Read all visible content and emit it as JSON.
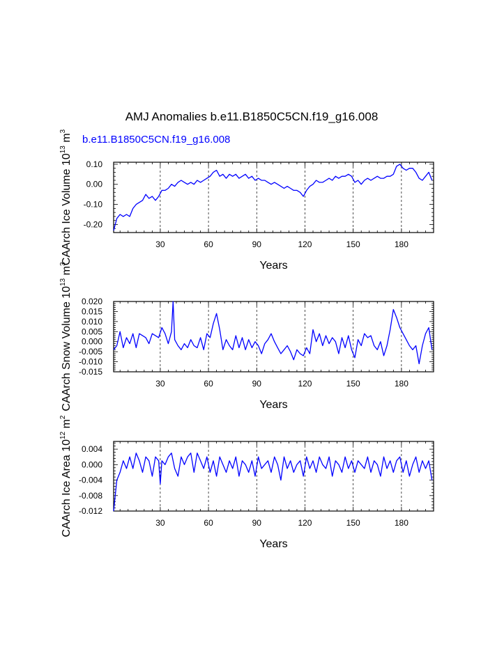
{
  "title": "AMJ Anomalies b.e11.B1850C5CN.f19_g16.008",
  "legend_label": "b.e11.B1850C5CN.f19_g16.008",
  "colors": {
    "series": "#0000ff",
    "axes": "#000000",
    "background": "#ffffff"
  },
  "chart_data": [
    {
      "type": "line",
      "title": "",
      "xlabel": "Years",
      "ylabel": "CAArch Ice Volume 10",
      "ylabel_sup": "13",
      "ylabel_unit": "m",
      "ylabel_unit_sup": "3",
      "xlim": [
        1,
        200
      ],
      "ylim": [
        -0.24,
        0.11
      ],
      "x_ticks": [
        30,
        60,
        90,
        120,
        150,
        180
      ],
      "y_ticks": [
        -0.2,
        -0.1,
        0.0,
        0.1
      ],
      "y_tick_labels": [
        "-0.20",
        "-0.10",
        "0.00",
        "0.10"
      ],
      "gridlines_x": [
        30,
        60,
        90,
        120,
        150,
        180
      ],
      "series": [
        {
          "name": "b.e11.B1850C5CN.f19_g16.008",
          "x": [
            1,
            3,
            5,
            7,
            9,
            11,
            13,
            15,
            17,
            19,
            21,
            23,
            25,
            27,
            29,
            31,
            33,
            35,
            37,
            39,
            41,
            43,
            45,
            47,
            49,
            51,
            53,
            55,
            57,
            59,
            61,
            63,
            65,
            67,
            69,
            71,
            73,
            75,
            77,
            79,
            81,
            83,
            85,
            87,
            89,
            91,
            93,
            95,
            97,
            99,
            101,
            103,
            105,
            107,
            109,
            111,
            113,
            115,
            117,
            119,
            121,
            123,
            125,
            127,
            129,
            131,
            133,
            135,
            137,
            139,
            141,
            143,
            145,
            147,
            149,
            151,
            153,
            155,
            157,
            159,
            161,
            163,
            165,
            167,
            169,
            171,
            173,
            175,
            177,
            179,
            181,
            183,
            185,
            187,
            189,
            191,
            193,
            195,
            197,
            199
          ],
          "values": [
            -0.23,
            -0.17,
            -0.15,
            -0.16,
            -0.15,
            -0.16,
            -0.12,
            -0.1,
            -0.09,
            -0.08,
            -0.05,
            -0.07,
            -0.06,
            -0.08,
            -0.06,
            -0.03,
            -0.03,
            -0.02,
            0.0,
            -0.01,
            0.01,
            0.02,
            0.01,
            0.0,
            0.01,
            0.0,
            0.02,
            0.01,
            0.02,
            0.03,
            0.04,
            0.06,
            0.07,
            0.04,
            0.05,
            0.03,
            0.05,
            0.04,
            0.05,
            0.03,
            0.04,
            0.05,
            0.03,
            0.04,
            0.02,
            0.03,
            0.02,
            0.02,
            0.01,
            0.0,
            0.01,
            0.0,
            -0.01,
            -0.02,
            -0.01,
            -0.02,
            -0.03,
            -0.03,
            -0.04,
            -0.06,
            -0.03,
            -0.01,
            0.0,
            0.02,
            0.01,
            0.01,
            0.02,
            0.03,
            0.02,
            0.04,
            0.03,
            0.04,
            0.04,
            0.05,
            0.04,
            0.01,
            0.02,
            0.0,
            0.02,
            0.03,
            0.02,
            0.03,
            0.04,
            0.03,
            0.03,
            0.04,
            0.04,
            0.05,
            0.09,
            0.1,
            0.08,
            0.07,
            0.08,
            0.08,
            0.06,
            0.03,
            0.02,
            0.04,
            0.06,
            0.02
          ]
        }
      ]
    },
    {
      "type": "line",
      "title": "",
      "xlabel": "Years",
      "ylabel": "CAArch Snow Volume 10",
      "ylabel_sup": "13",
      "ylabel_unit": "m",
      "ylabel_unit_sup": "3",
      "xlim": [
        1,
        200
      ],
      "ylim": [
        -0.015,
        0.02
      ],
      "x_ticks": [
        30,
        60,
        90,
        120,
        150,
        180
      ],
      "y_ticks": [
        -0.015,
        -0.01,
        -0.005,
        0.0,
        0.005,
        0.01,
        0.015,
        0.02
      ],
      "y_tick_labels": [
        "-0.015",
        "-0.010",
        "-0.005",
        "0.000",
        "0.005",
        "0.010",
        "0.015",
        "0.020"
      ],
      "gridlines_x": [
        30,
        60,
        90,
        120,
        150,
        180
      ],
      "series": [
        {
          "name": "b.e11.B1850C5CN.f19_g16.008",
          "x": [
            1,
            3,
            5,
            7,
            9,
            11,
            13,
            15,
            17,
            19,
            21,
            23,
            25,
            27,
            29,
            31,
            33,
            35,
            37,
            38,
            39,
            41,
            43,
            45,
            47,
            49,
            51,
            53,
            55,
            57,
            59,
            61,
            63,
            65,
            67,
            69,
            71,
            73,
            75,
            77,
            79,
            81,
            83,
            85,
            87,
            89,
            91,
            93,
            95,
            97,
            99,
            101,
            103,
            105,
            107,
            109,
            111,
            113,
            115,
            117,
            119,
            121,
            123,
            125,
            127,
            129,
            131,
            133,
            135,
            137,
            139,
            141,
            143,
            145,
            147,
            149,
            151,
            153,
            155,
            157,
            159,
            161,
            163,
            165,
            167,
            169,
            171,
            173,
            175,
            177,
            179,
            181,
            183,
            185,
            187,
            189,
            191,
            193,
            195,
            197,
            199
          ],
          "values": [
            -0.004,
            -0.002,
            0.005,
            -0.003,
            0.002,
            -0.001,
            0.004,
            -0.003,
            0.004,
            0.003,
            0.002,
            -0.001,
            0.004,
            0.003,
            0.002,
            0.007,
            0.004,
            -0.001,
            0.005,
            0.02,
            0.001,
            -0.002,
            -0.004,
            -0.001,
            -0.003,
            0.001,
            -0.002,
            -0.003,
            0.002,
            -0.004,
            0.004,
            0.002,
            0.009,
            0.014,
            0.006,
            -0.004,
            0.001,
            -0.002,
            -0.004,
            0.003,
            -0.003,
            0.002,
            -0.004,
            0.001,
            -0.003,
            0.0,
            -0.002,
            -0.006,
            -0.001,
            0.001,
            0.004,
            0.0,
            -0.003,
            -0.006,
            -0.004,
            -0.002,
            -0.005,
            -0.009,
            -0.004,
            -0.006,
            -0.007,
            -0.003,
            -0.006,
            0.006,
            0.0,
            0.004,
            -0.002,
            0.003,
            -0.001,
            0.002,
            0.0,
            -0.006,
            0.002,
            -0.003,
            0.003,
            -0.004,
            -0.008,
            0.001,
            -0.002,
            0.004,
            0.002,
            0.003,
            -0.002,
            -0.004,
            0.0,
            -0.007,
            -0.002,
            0.006,
            0.016,
            0.012,
            0.007,
            0.004,
            0.001,
            -0.002,
            -0.004,
            -0.002,
            -0.011,
            -0.002,
            0.004,
            0.007,
            -0.004
          ]
        }
      ]
    },
    {
      "type": "line",
      "title": "",
      "xlabel": "Years",
      "ylabel": "CAArch Ice Area 10",
      "ylabel_sup": "12",
      "ylabel_unit": "m",
      "ylabel_unit_sup": "2",
      "xlim": [
        1,
        200
      ],
      "ylim": [
        -0.012,
        0.006
      ],
      "x_ticks": [
        30,
        60,
        90,
        120,
        150,
        180
      ],
      "y_ticks": [
        -0.012,
        -0.008,
        -0.004,
        0.0,
        0.004
      ],
      "y_tick_labels": [
        "-0.012",
        "-0.008",
        "-0.004",
        "0.000",
        "0.004"
      ],
      "gridlines_x": [
        30,
        60,
        90,
        120,
        150,
        180
      ],
      "series": [
        {
          "name": "b.e11.B1850C5CN.f19_g16.008",
          "x": [
            1,
            3,
            5,
            7,
            9,
            11,
            13,
            15,
            17,
            19,
            21,
            23,
            25,
            27,
            29,
            30,
            31,
            33,
            35,
            37,
            39,
            41,
            43,
            45,
            47,
            49,
            51,
            53,
            55,
            57,
            59,
            61,
            63,
            65,
            67,
            69,
            71,
            73,
            75,
            77,
            79,
            81,
            83,
            85,
            87,
            89,
            91,
            93,
            95,
            97,
            99,
            101,
            103,
            105,
            107,
            109,
            111,
            113,
            115,
            117,
            119,
            121,
            123,
            125,
            127,
            129,
            131,
            133,
            135,
            137,
            139,
            141,
            143,
            145,
            147,
            149,
            151,
            153,
            155,
            157,
            159,
            161,
            163,
            165,
            167,
            169,
            171,
            173,
            175,
            177,
            179,
            181,
            183,
            185,
            187,
            189,
            191,
            193,
            195,
            197,
            199
          ],
          "values": [
            -0.012,
            -0.004,
            -0.002,
            0.001,
            -0.001,
            0.002,
            -0.001,
            0.003,
            0.001,
            -0.002,
            0.002,
            0.001,
            -0.003,
            0.002,
            0.001,
            -0.005,
            0.001,
            0.0,
            0.002,
            0.003,
            -0.001,
            -0.003,
            0.002,
            0.0,
            0.002,
            0.003,
            -0.002,
            0.003,
            0.001,
            -0.001,
            0.002,
            -0.002,
            0.001,
            -0.003,
            0.002,
            0.0,
            -0.002,
            0.001,
            -0.001,
            0.002,
            -0.003,
            0.001,
            0.0,
            -0.002,
            0.001,
            -0.003,
            0.002,
            -0.001,
            0.0,
            0.001,
            -0.002,
            0.002,
            0.0,
            -0.004,
            0.002,
            -0.001,
            0.001,
            -0.002,
            0.0,
            0.001,
            -0.003,
            0.002,
            -0.001,
            0.001,
            -0.002,
            0.002,
            0.0,
            -0.001,
            0.002,
            -0.003,
            0.001,
            0.0,
            -0.002,
            0.002,
            -0.001,
            0.001,
            -0.002,
            0.001,
            0.0,
            -0.001,
            0.002,
            -0.002,
            0.001,
            0.0,
            -0.003,
            0.002,
            -0.001,
            0.001,
            -0.002,
            0.001,
            0.002,
            -0.002,
            0.001,
            -0.003,
            0.0,
            0.002,
            -0.002,
            0.001,
            -0.001,
            0.001,
            -0.004
          ]
        }
      ]
    }
  ]
}
